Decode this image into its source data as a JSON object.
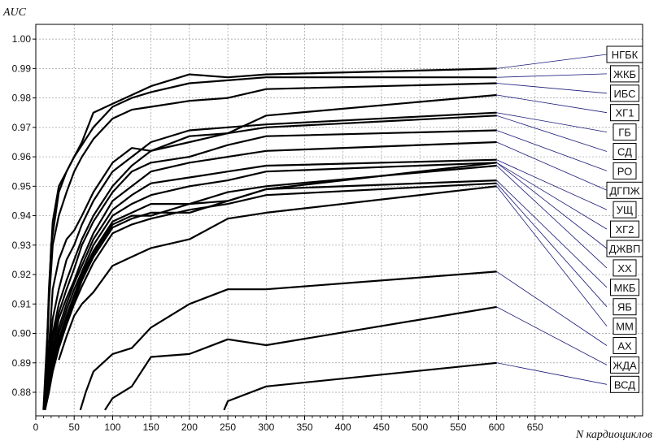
{
  "chart_data": {
    "type": "line",
    "ylabel": "AUC",
    "xlabel": "N кардиоциклов",
    "xlim": [
      0,
      790
    ],
    "ylim": [
      0.872,
      1.005
    ],
    "grid": true,
    "legend_placement": "right",
    "x_ticks": [
      0,
      50,
      100,
      150,
      200,
      250,
      300,
      350,
      400,
      450,
      500,
      550,
      600,
      650
    ],
    "y_ticks": [
      0.88,
      0.89,
      0.9,
      0.91,
      0.92,
      0.93,
      0.94,
      0.95,
      0.96,
      0.97,
      0.98,
      0.99,
      1.0
    ],
    "y_tick_labels": [
      "0.88",
      "0.89",
      "0.90",
      "0.91",
      "0.92",
      "0.93",
      "0.94",
      "0.95",
      "0.96",
      "0.97",
      "0.98",
      "0.99",
      "1.00"
    ],
    "series": [
      {
        "name": "НГБК",
        "x": [
          10,
          15,
          20,
          30,
          40,
          50,
          60,
          75,
          100,
          125,
          150,
          200,
          250,
          300,
          600
        ],
        "y": [
          0.874,
          0.9,
          0.93,
          0.948,
          0.955,
          0.96,
          0.965,
          0.975,
          0.978,
          0.981,
          0.984,
          0.988,
          0.987,
          0.988,
          0.99
        ]
      },
      {
        "name": "ЖКБ",
        "x": [
          12,
          17,
          22,
          30,
          40,
          50,
          60,
          75,
          100,
          125,
          150,
          200,
          250,
          300,
          600
        ],
        "y": [
          0.874,
          0.915,
          0.938,
          0.95,
          0.955,
          0.96,
          0.964,
          0.97,
          0.977,
          0.98,
          0.982,
          0.985,
          0.986,
          0.987,
          0.987
        ]
      },
      {
        "name": "ИБС",
        "x": [
          12,
          17,
          22,
          30,
          40,
          50,
          60,
          75,
          100,
          125,
          150,
          200,
          250,
          300,
          600
        ],
        "y": [
          0.874,
          0.91,
          0.93,
          0.94,
          0.948,
          0.955,
          0.96,
          0.966,
          0.973,
          0.976,
          0.977,
          0.979,
          0.98,
          0.983,
          0.985
        ]
      },
      {
        "name": "ХГ1",
        "x": [
          12,
          17,
          22,
          30,
          40,
          50,
          60,
          75,
          100,
          125,
          150,
          200,
          250,
          300,
          600
        ],
        "y": [
          0.874,
          0.895,
          0.915,
          0.925,
          0.932,
          0.935,
          0.94,
          0.948,
          0.958,
          0.963,
          0.962,
          0.965,
          0.968,
          0.974,
          0.981
        ]
      },
      {
        "name": "ГБ",
        "x": [
          12,
          17,
          22,
          30,
          40,
          50,
          60,
          75,
          100,
          125,
          150,
          200,
          250,
          300,
          600
        ],
        "y": [
          0.874,
          0.892,
          0.905,
          0.915,
          0.925,
          0.93,
          0.937,
          0.945,
          0.955,
          0.96,
          0.965,
          0.969,
          0.97,
          0.971,
          0.975
        ]
      },
      {
        "name": "СД",
        "x": [
          12,
          17,
          22,
          30,
          40,
          50,
          60,
          75,
          100,
          125,
          150,
          200,
          250,
          300,
          600
        ],
        "y": [
          0.874,
          0.888,
          0.9,
          0.91,
          0.918,
          0.925,
          0.932,
          0.94,
          0.95,
          0.957,
          0.962,
          0.967,
          0.968,
          0.97,
          0.974
        ]
      },
      {
        "name": "РО",
        "x": [
          12,
          17,
          22,
          30,
          40,
          50,
          60,
          75,
          100,
          125,
          150,
          200,
          250,
          300,
          600
        ],
        "y": [
          0.874,
          0.886,
          0.898,
          0.907,
          0.915,
          0.922,
          0.93,
          0.938,
          0.948,
          0.955,
          0.958,
          0.96,
          0.964,
          0.967,
          0.969
        ]
      },
      {
        "name": "ДГПЖ",
        "x": [
          12,
          17,
          22,
          30,
          40,
          50,
          60,
          75,
          100,
          125,
          150,
          200,
          250,
          300,
          600
        ],
        "y": [
          0.874,
          0.884,
          0.895,
          0.905,
          0.912,
          0.918,
          0.925,
          0.934,
          0.945,
          0.95,
          0.955,
          0.958,
          0.96,
          0.962,
          0.965
        ]
      },
      {
        "name": "УЩ",
        "x": [
          12,
          17,
          22,
          30,
          40,
          50,
          60,
          75,
          100,
          125,
          150,
          200,
          250,
          300,
          600
        ],
        "y": [
          0.874,
          0.883,
          0.893,
          0.902,
          0.91,
          0.917,
          0.923,
          0.932,
          0.942,
          0.947,
          0.951,
          0.953,
          0.955,
          0.957,
          0.959
        ]
      },
      {
        "name": "ХГ2",
        "x": [
          12,
          17,
          22,
          30,
          40,
          50,
          60,
          75,
          100,
          125,
          150,
          200,
          250,
          300,
          600
        ],
        "y": [
          0.874,
          0.882,
          0.891,
          0.9,
          0.908,
          0.915,
          0.921,
          0.93,
          0.94,
          0.944,
          0.947,
          0.95,
          0.952,
          0.955,
          0.958
        ]
      },
      {
        "name": "ДЖВП",
        "x": [
          12,
          17,
          22,
          30,
          40,
          50,
          60,
          75,
          100,
          125,
          150,
          200,
          250,
          300,
          600
        ],
        "y": [
          0.874,
          0.882,
          0.89,
          0.898,
          0.906,
          0.913,
          0.92,
          0.928,
          0.938,
          0.941,
          0.944,
          0.944,
          0.945,
          0.949,
          0.958
        ]
      },
      {
        "name": "ХХ",
        "x": [
          12,
          17,
          22,
          30,
          40,
          50,
          60,
          75,
          100,
          125,
          150,
          200,
          250,
          300,
          600
        ],
        "y": [
          0.874,
          0.881,
          0.889,
          0.897,
          0.905,
          0.912,
          0.919,
          0.927,
          0.937,
          0.94,
          0.94,
          0.944,
          0.948,
          0.95,
          0.957
        ]
      },
      {
        "name": "МКБ",
        "x": [
          12,
          17,
          22,
          30,
          40,
          50,
          60,
          75,
          100,
          125,
          150,
          200,
          250,
          300,
          600
        ],
        "y": [
          0.874,
          0.88,
          0.888,
          0.896,
          0.904,
          0.911,
          0.918,
          0.926,
          0.936,
          0.939,
          0.941,
          0.941,
          0.945,
          0.949,
          0.952
        ]
      },
      {
        "name": "ЯБ",
        "x": [
          12,
          17,
          22,
          30,
          40,
          50,
          60,
          75,
          100,
          125,
          150,
          200,
          250,
          300,
          600
        ],
        "y": [
          0.874,
          0.88,
          0.887,
          0.895,
          0.903,
          0.91,
          0.916,
          0.924,
          0.934,
          0.937,
          0.939,
          0.942,
          0.944,
          0.947,
          0.951
        ]
      },
      {
        "name": "ММ",
        "x": [
          30,
          40,
          50,
          60,
          75,
          100,
          125,
          150,
          200,
          250,
          300,
          600
        ],
        "y": [
          0.891,
          0.899,
          0.906,
          0.91,
          0.914,
          0.923,
          0.926,
          0.929,
          0.932,
          0.939,
          0.941,
          0.95
        ]
      },
      {
        "name": "АХ",
        "x": [
          58,
          65,
          75,
          100,
          125,
          150,
          200,
          250,
          300,
          600
        ],
        "y": [
          0.874,
          0.88,
          0.887,
          0.893,
          0.895,
          0.902,
          0.91,
          0.915,
          0.915,
          0.921
        ]
      },
      {
        "name": "ЖДА",
        "x": [
          90,
          100,
          125,
          150,
          200,
          250,
          300,
          600
        ],
        "y": [
          0.874,
          0.878,
          0.882,
          0.892,
          0.893,
          0.898,
          0.896,
          0.909
        ]
      },
      {
        "name": "ВСД",
        "x": [
          245,
          250,
          300,
          600
        ],
        "y": [
          0.874,
          0.877,
          0.882,
          0.89
        ]
      }
    ]
  }
}
